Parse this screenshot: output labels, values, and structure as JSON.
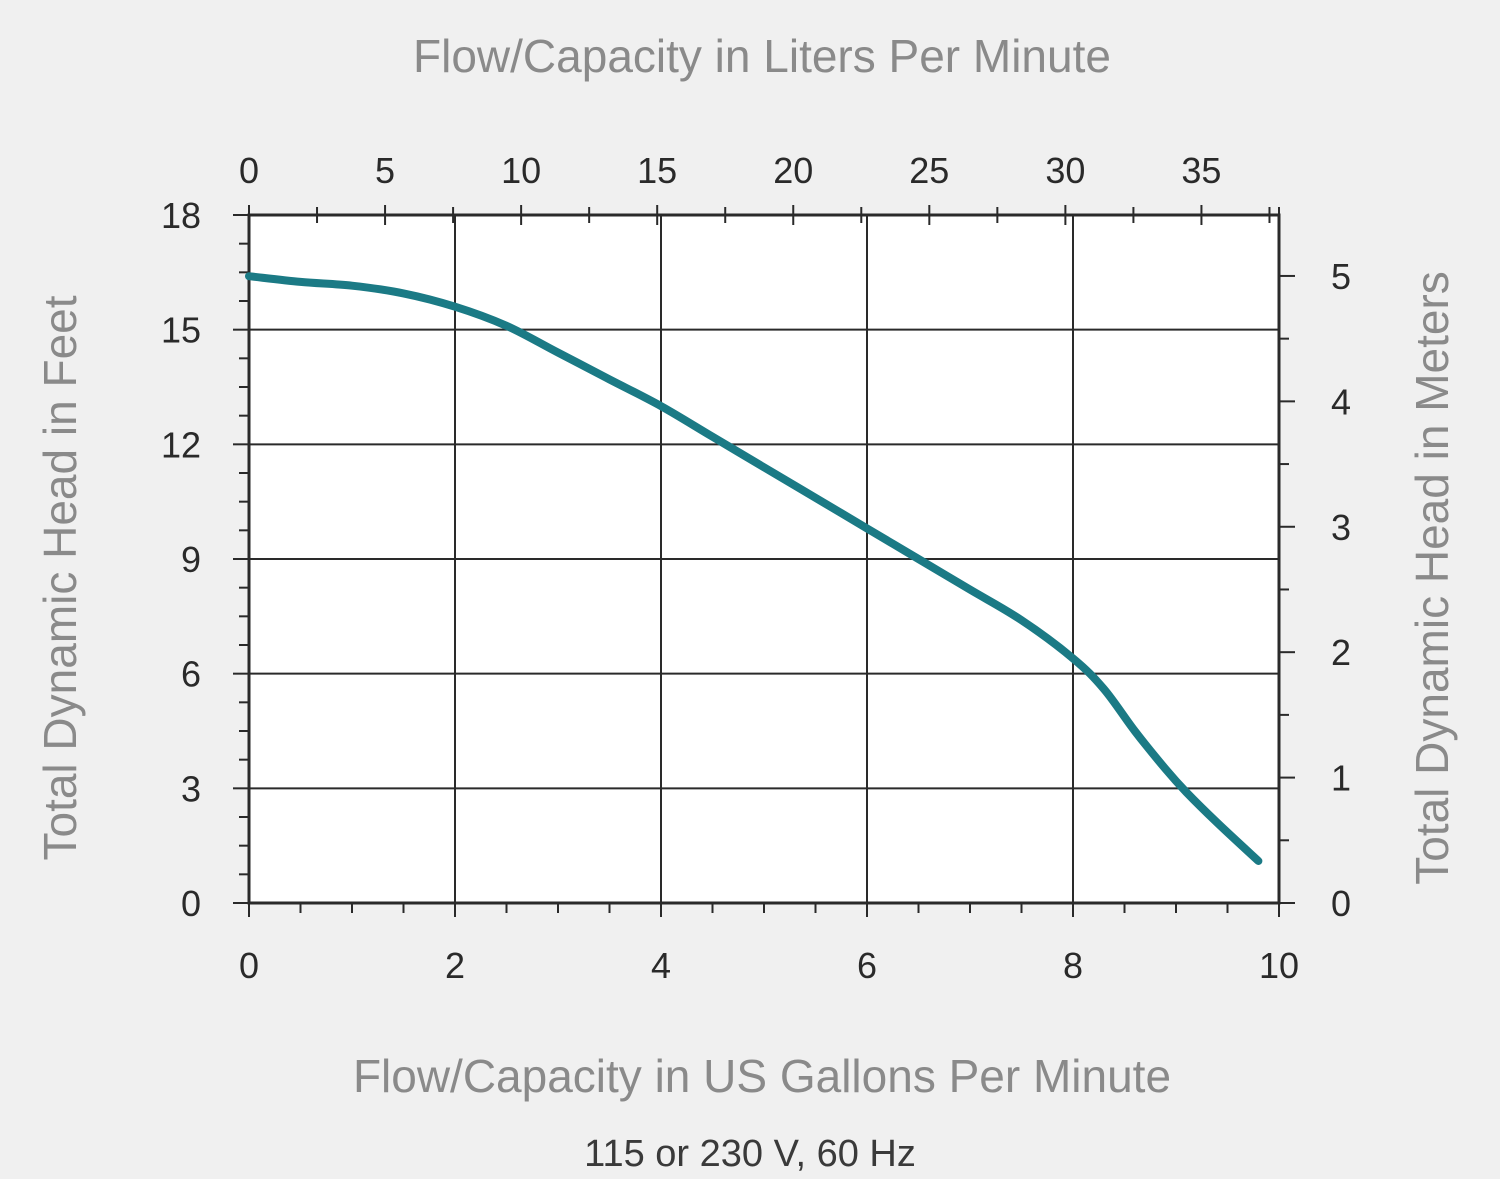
{
  "chart_data": {
    "type": "line",
    "title": "",
    "top_xlabel": "Flow/Capacity in Liters Per Minute",
    "xlabel": "Flow/Capacity in US Gallons Per Minute",
    "ylabel": "Total Dynamic Head in Feet",
    "right_ylabel": "Total Dynamic Head in Meters",
    "caption": "115 or 230 V, 60 Hz",
    "xlim": [
      0,
      10
    ],
    "ylim": [
      0,
      18
    ],
    "top_xlim": [
      0,
      37.85
    ],
    "right_ylim": [
      0,
      5.486
    ],
    "x_ticks": [
      "0",
      "2",
      "4",
      "6",
      "8",
      "10"
    ],
    "y_ticks": [
      "0",
      "3",
      "6",
      "9",
      "12",
      "15",
      "18"
    ],
    "top_x_ticks": [
      "0",
      "5",
      "10",
      "15",
      "20",
      "25",
      "30",
      "35"
    ],
    "right_y_ticks": [
      "0",
      "1",
      "2",
      "3",
      "4",
      "5"
    ],
    "grid": true,
    "line_color": "#1b7a85",
    "series": [
      {
        "x": [
          0,
          0.5,
          1,
          1.5,
          2,
          2.5,
          3,
          3.5,
          4,
          4.5,
          5,
          5.5,
          6,
          6.5,
          7,
          7.5,
          8,
          8.3,
          8.6,
          8.9,
          9.1,
          9.4,
          9.8
        ],
        "y": [
          16.4,
          16.25,
          16.15,
          15.95,
          15.6,
          15.1,
          14.4,
          13.7,
          13.0,
          12.2,
          11.4,
          10.6,
          9.8,
          9.0,
          8.2,
          7.4,
          6.4,
          5.6,
          4.5,
          3.5,
          2.9,
          2.1,
          1.1
        ]
      }
    ]
  }
}
